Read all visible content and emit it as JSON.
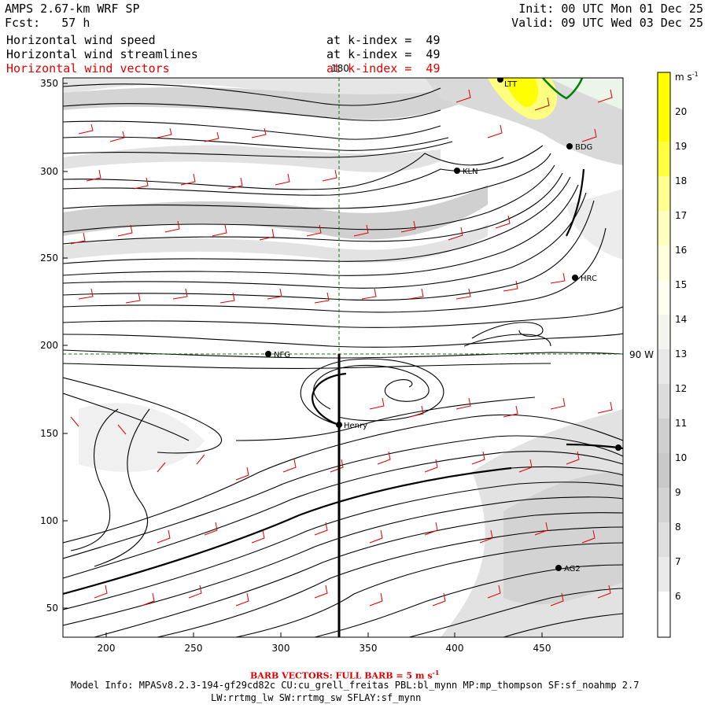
{
  "header": {
    "model": "AMPS 2.67-km WRF SP",
    "fcst_label": "Fcst:",
    "fcst_value": "57 h",
    "init": "Init: 00 UTC Mon 01 Dec 25",
    "valid": "Valid: 09 UTC Wed 03 Dec 25",
    "fields": [
      {
        "name": "Horizontal wind speed",
        "level": "at k-index =  49"
      },
      {
        "name": "Horizontal wind streamlines",
        "level": "at k-index =  49"
      },
      {
        "name": "Horizontal wind vectors",
        "level": "at k-index =  49"
      }
    ]
  },
  "map": {
    "x_ticks": [
      "200",
      "250",
      "300",
      "350",
      "400",
      "450"
    ],
    "y_ticks": [
      "350",
      "300",
      "250",
      "200",
      "150",
      "100",
      "50"
    ],
    "meridian_label": "180",
    "parallel_label": "90 W",
    "stations": [
      {
        "name": "LTT"
      },
      {
        "name": "BDG"
      },
      {
        "name": "KLN"
      },
      {
        "name": "HRC"
      },
      {
        "name": "NFG"
      },
      {
        "name": "Henry"
      },
      {
        "name": "AG2"
      }
    ]
  },
  "colorbar": {
    "unit": "m s",
    "unit_sup": "-1",
    "labels": [
      "20",
      "19",
      "18",
      "17",
      "16",
      "15",
      "14",
      "13",
      "12",
      "11",
      "10",
      "9",
      "8",
      "7",
      "6"
    ],
    "colors": [
      "#ffff00",
      "#ffff40",
      "#ffff80",
      "#ffffb0",
      "#fffff0",
      "#ffffdc",
      "#f4f4f4",
      "#ececec",
      "#e2e2e2",
      "#d6d6d6",
      "#c9c9c9",
      "#cdcdcd",
      "#dddddd",
      "#e8e8e8",
      "#f4f4f4",
      "#ffffff"
    ]
  },
  "footer": {
    "barb_note": "BARB VECTORS:  FULL BARB = 5 m s",
    "barb_sup": "-1",
    "model_info": "Model Info: MPASv8.2.3-194-gf29cd82c CU:cu_grell_freitas PBL:bl_mynn MP:mp_thompson SF:sf_noahmp 2.7",
    "model_info2": "LW:rrtmg_lw SW:rrtmg_sw SFLAY:sf_mynn"
  }
}
